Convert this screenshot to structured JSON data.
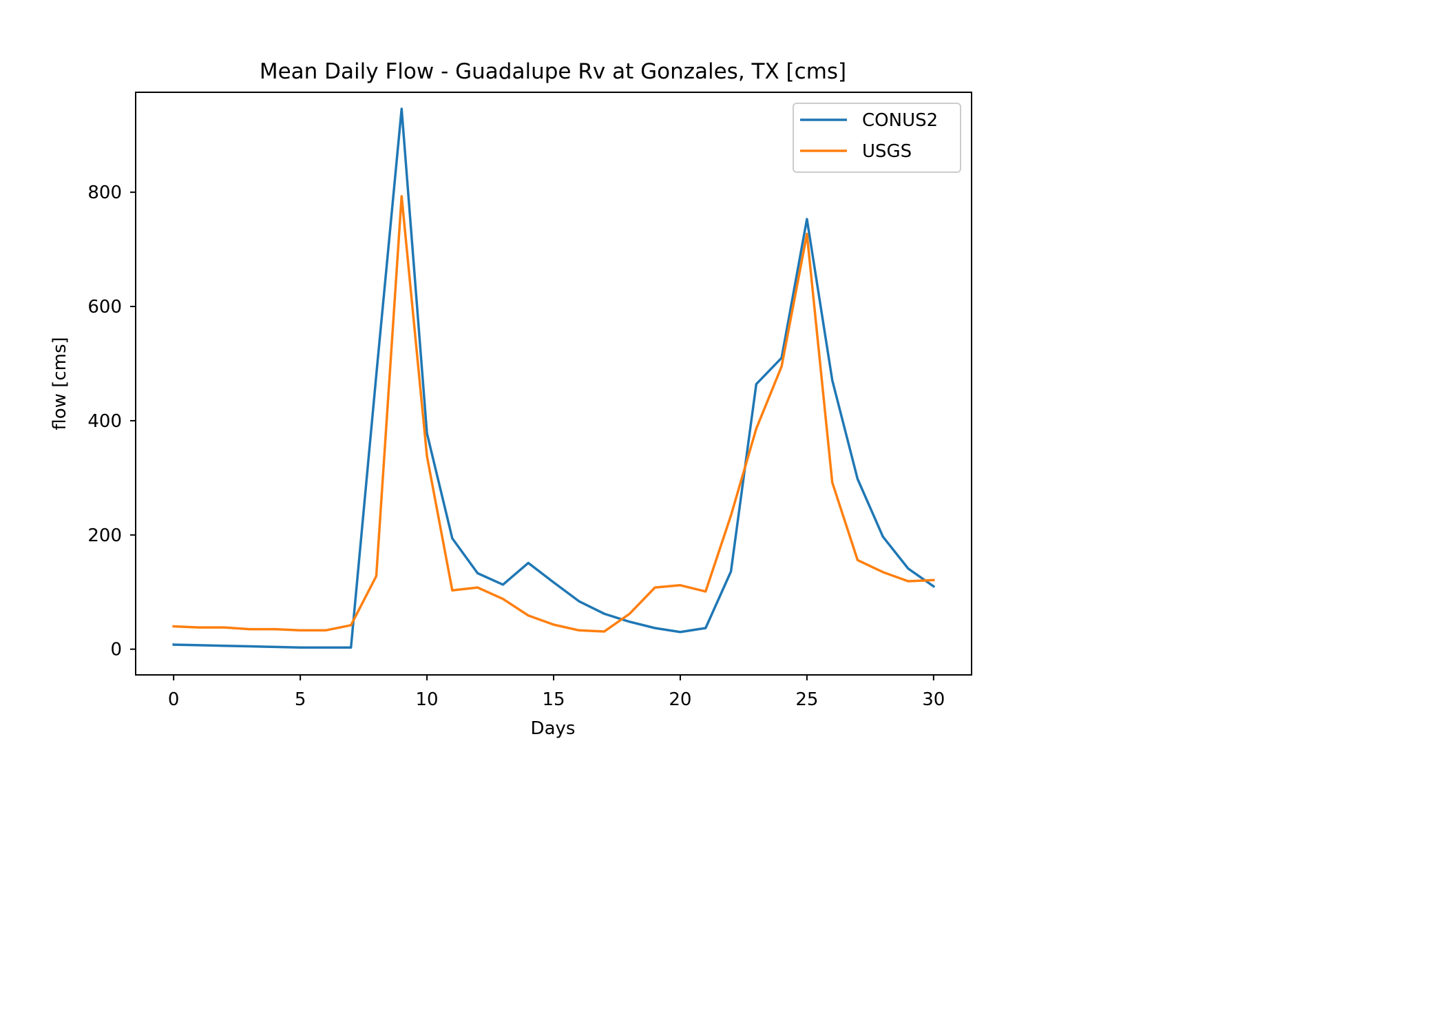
{
  "chart_data": {
    "type": "line",
    "title": "Mean Daily Flow - Guadalupe Rv at Gonzales, TX [cms]",
    "xlabel": "Days",
    "ylabel": "flow [cms]",
    "xlim": [
      -1.5,
      31.5
    ],
    "ylim": [
      -45,
      975
    ],
    "xticks": [
      0,
      5,
      10,
      15,
      20,
      25,
      30
    ],
    "xtick_labels": [
      "0",
      "5",
      "10",
      "15",
      "20",
      "25",
      "30"
    ],
    "yticks": [
      0,
      200,
      400,
      600,
      800
    ],
    "ytick_labels": [
      "0",
      "200",
      "400",
      "600",
      "800"
    ],
    "grid": false,
    "legend_position": "top-right",
    "x": [
      0,
      1,
      2,
      3,
      4,
      5,
      6,
      7,
      8,
      9,
      10,
      11,
      12,
      13,
      14,
      15,
      16,
      17,
      18,
      19,
      20,
      21,
      22,
      23,
      24,
      25,
      26,
      27,
      28,
      29,
      30
    ],
    "series": [
      {
        "name": "CONUS2",
        "color": "#1f77b4",
        "values": [
          8,
          7,
          6,
          5,
          4,
          3,
          3,
          3,
          480,
          946,
          378,
          194,
          133,
          113,
          151,
          117,
          84,
          62,
          48,
          37,
          30,
          37,
          136,
          464,
          510,
          753,
          471,
          298,
          197,
          141,
          110
        ]
      },
      {
        "name": "USGS",
        "color": "#ff7f0e",
        "values": [
          40,
          38,
          38,
          35,
          35,
          33,
          33,
          42,
          128,
          793,
          338,
          103,
          108,
          88,
          59,
          43,
          33,
          31,
          62,
          108,
          112,
          101,
          234,
          386,
          495,
          727,
          292,
          156,
          135,
          119,
          121
        ]
      }
    ]
  }
}
